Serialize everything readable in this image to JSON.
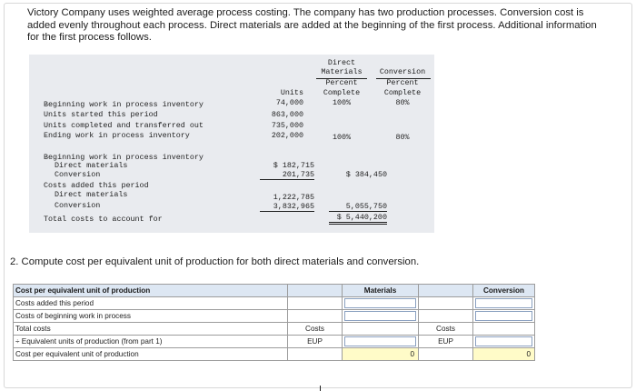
{
  "intro": {
    "text": "Victory Company uses weighted average process costing. The company has two production processes. Conversion cost is added evenly throughout each process. Direct materials are added at the beginning of the first process. Additional information for the first process follows."
  },
  "info_table": {
    "col_units": "Units",
    "col_dm": [
      "Direct",
      "Materials",
      "Percent",
      "Complete"
    ],
    "col_conv": [
      "Conversion",
      "Percent",
      "Complete"
    ],
    "rows": [
      {
        "label": "Beginning work in process inventory",
        "units": "74,000",
        "dm": "100%",
        "conv": "80%"
      },
      {
        "label": "Units started this period",
        "units": "863,000",
        "dm": "",
        "conv": ""
      },
      {
        "label": "Units completed and transferred out",
        "units": "735,000",
        "dm": "",
        "conv": ""
      },
      {
        "label": "Ending work in process inventory",
        "units": "202,000",
        "dm": "100%",
        "conv": "80%"
      }
    ],
    "costs": {
      "bwip_label": "Beginning work in process inventory",
      "bwip_dm_label": "Direct materials",
      "bwip_dm": "$ 182,715",
      "bwip_conv_label": "Conversion",
      "bwip_conv": "201,735",
      "bwip_total": "$ 384,450",
      "added_label": "Costs added this period",
      "added_dm_label": "Direct materials",
      "added_dm": "1,222,785",
      "added_conv_label": "Conversion",
      "added_conv": "3,832,965",
      "added_total": "5,055,750",
      "total_label": "Total costs to account for",
      "total": "$ 5,440,200"
    }
  },
  "question": "2. Compute cost per equivalent unit of production for both direct materials and conversion.",
  "answer_table": {
    "header": "Cost per equivalent unit of production",
    "materials": "Materials",
    "conversion": "Conversion",
    "rows": [
      {
        "label": "Costs added this period"
      },
      {
        "label": "Costs of beginning work in process"
      },
      {
        "label": "Total costs",
        "mat_unit": "Costs",
        "conv_unit": "Costs"
      },
      {
        "label": "÷ Equivalent units of production (from part 1)",
        "mat_unit": "EUP",
        "conv_unit": "EUP"
      },
      {
        "label": "Cost per equivalent unit of production",
        "mat_value": "0",
        "conv_value": "0"
      }
    ]
  }
}
